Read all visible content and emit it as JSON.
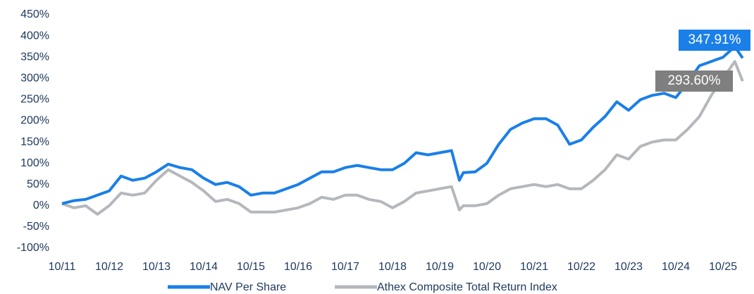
{
  "chart_data": {
    "type": "line",
    "x": [
      "10/11",
      "01/12",
      "04/12",
      "07/12",
      "10/12",
      "01/13",
      "04/13",
      "07/13",
      "10/13",
      "01/14",
      "04/14",
      "07/14",
      "10/14",
      "01/15",
      "04/15",
      "07/15",
      "10/15",
      "01/16",
      "04/16",
      "07/16",
      "10/16",
      "01/17",
      "04/17",
      "07/17",
      "10/17",
      "01/18",
      "04/18",
      "07/18",
      "10/18",
      "01/19",
      "04/19",
      "07/19",
      "10/19",
      "01/20",
      "03/20",
      "04/20",
      "07/20",
      "10/20",
      "01/21",
      "04/21",
      "07/21",
      "10/21",
      "01/22",
      "04/22",
      "07/22",
      "10/22",
      "01/23",
      "04/23",
      "07/23",
      "10/23",
      "01/24",
      "04/24",
      "07/24",
      "10/24",
      "01/25",
      "04/25",
      "07/25",
      "10/25",
      "01/26",
      "03/26"
    ],
    "series": [
      {
        "name": "NAV Per Share",
        "color": "#1a7fe8",
        "end_label": "347.91%",
        "values": [
          5,
          12,
          15,
          25,
          35,
          70,
          60,
          65,
          80,
          98,
          90,
          85,
          65,
          50,
          55,
          45,
          25,
          30,
          30,
          40,
          50,
          65,
          80,
          80,
          90,
          95,
          90,
          85,
          85,
          100,
          125,
          120,
          125,
          130,
          60,
          78,
          80,
          100,
          145,
          180,
          195,
          205,
          205,
          190,
          145,
          155,
          185,
          210,
          245,
          225,
          250,
          260,
          265,
          255,
          290,
          330,
          340,
          350,
          375,
          347.91
        ]
      },
      {
        "name": "Athex Composite Total Return Index",
        "color": "#b4b8bd",
        "end_label": "293.60%",
        "values": [
          5,
          -5,
          0,
          -20,
          0,
          30,
          25,
          30,
          60,
          85,
          70,
          55,
          35,
          10,
          15,
          5,
          -15,
          -15,
          -15,
          -10,
          -5,
          5,
          20,
          15,
          25,
          25,
          15,
          10,
          -5,
          10,
          30,
          35,
          40,
          45,
          -10,
          0,
          0,
          5,
          25,
          40,
          45,
          50,
          45,
          50,
          40,
          40,
          60,
          85,
          120,
          110,
          140,
          150,
          155,
          155,
          180,
          210,
          260,
          300,
          340,
          293.6
        ]
      }
    ],
    "xlim": [
      "10/11",
      "04/26"
    ],
    "xticks": [
      "10/11",
      "10/12",
      "10/13",
      "10/14",
      "10/15",
      "10/16",
      "10/17",
      "10/18",
      "10/19",
      "10/20",
      "10/21",
      "10/22",
      "10/23",
      "10/24",
      "10/25"
    ],
    "ylim": [
      -100,
      450
    ],
    "yticks": [
      {
        "value": -100,
        "label": "-100%"
      },
      {
        "value": -50,
        "label": "-50%"
      },
      {
        "value": 0,
        "label": "0%"
      },
      {
        "value": 50,
        "label": "50%"
      },
      {
        "value": 100,
        "label": "100%"
      },
      {
        "value": 150,
        "label": "150%"
      },
      {
        "value": 200,
        "label": "200%"
      },
      {
        "value": 250,
        "label": "250%"
      },
      {
        "value": 300,
        "label": "300%"
      },
      {
        "value": 350,
        "label": "350%"
      },
      {
        "value": 400,
        "label": "400%"
      },
      {
        "value": 450,
        "label": "450%"
      }
    ],
    "grid": false,
    "legend": "bottom"
  }
}
